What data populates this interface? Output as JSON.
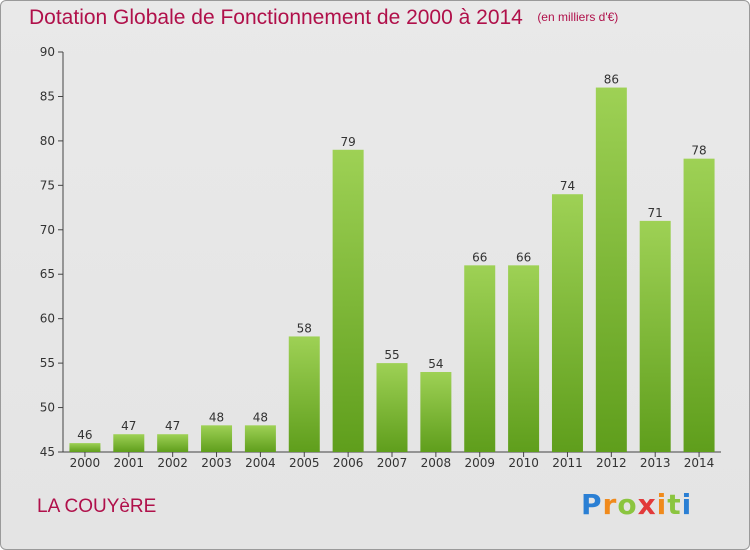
{
  "title": "Dotation Globale de Fonctionnement de 2000 à 2014",
  "unit": "(en milliers d'€)",
  "commune": "LA COUYèRE",
  "logo": "Proxiti",
  "chart_data": {
    "type": "bar",
    "title": "Dotation Globale de Fonctionnement de 2000 à 2014",
    "xlabel": "",
    "ylabel": "",
    "categories": [
      "2000",
      "2001",
      "2002",
      "2003",
      "2004",
      "2005",
      "2006",
      "2007",
      "2008",
      "2009",
      "2010",
      "2011",
      "2012",
      "2013",
      "2014"
    ],
    "values": [
      46,
      47,
      47,
      48,
      48,
      58,
      79,
      55,
      54,
      66,
      66,
      74,
      86,
      71,
      78
    ],
    "ylim": [
      45,
      90
    ],
    "yticks": [
      45,
      50,
      55,
      60,
      65,
      70,
      75,
      80,
      85,
      90
    ],
    "grid": false,
    "bar_color": "#7cbf2e"
  }
}
